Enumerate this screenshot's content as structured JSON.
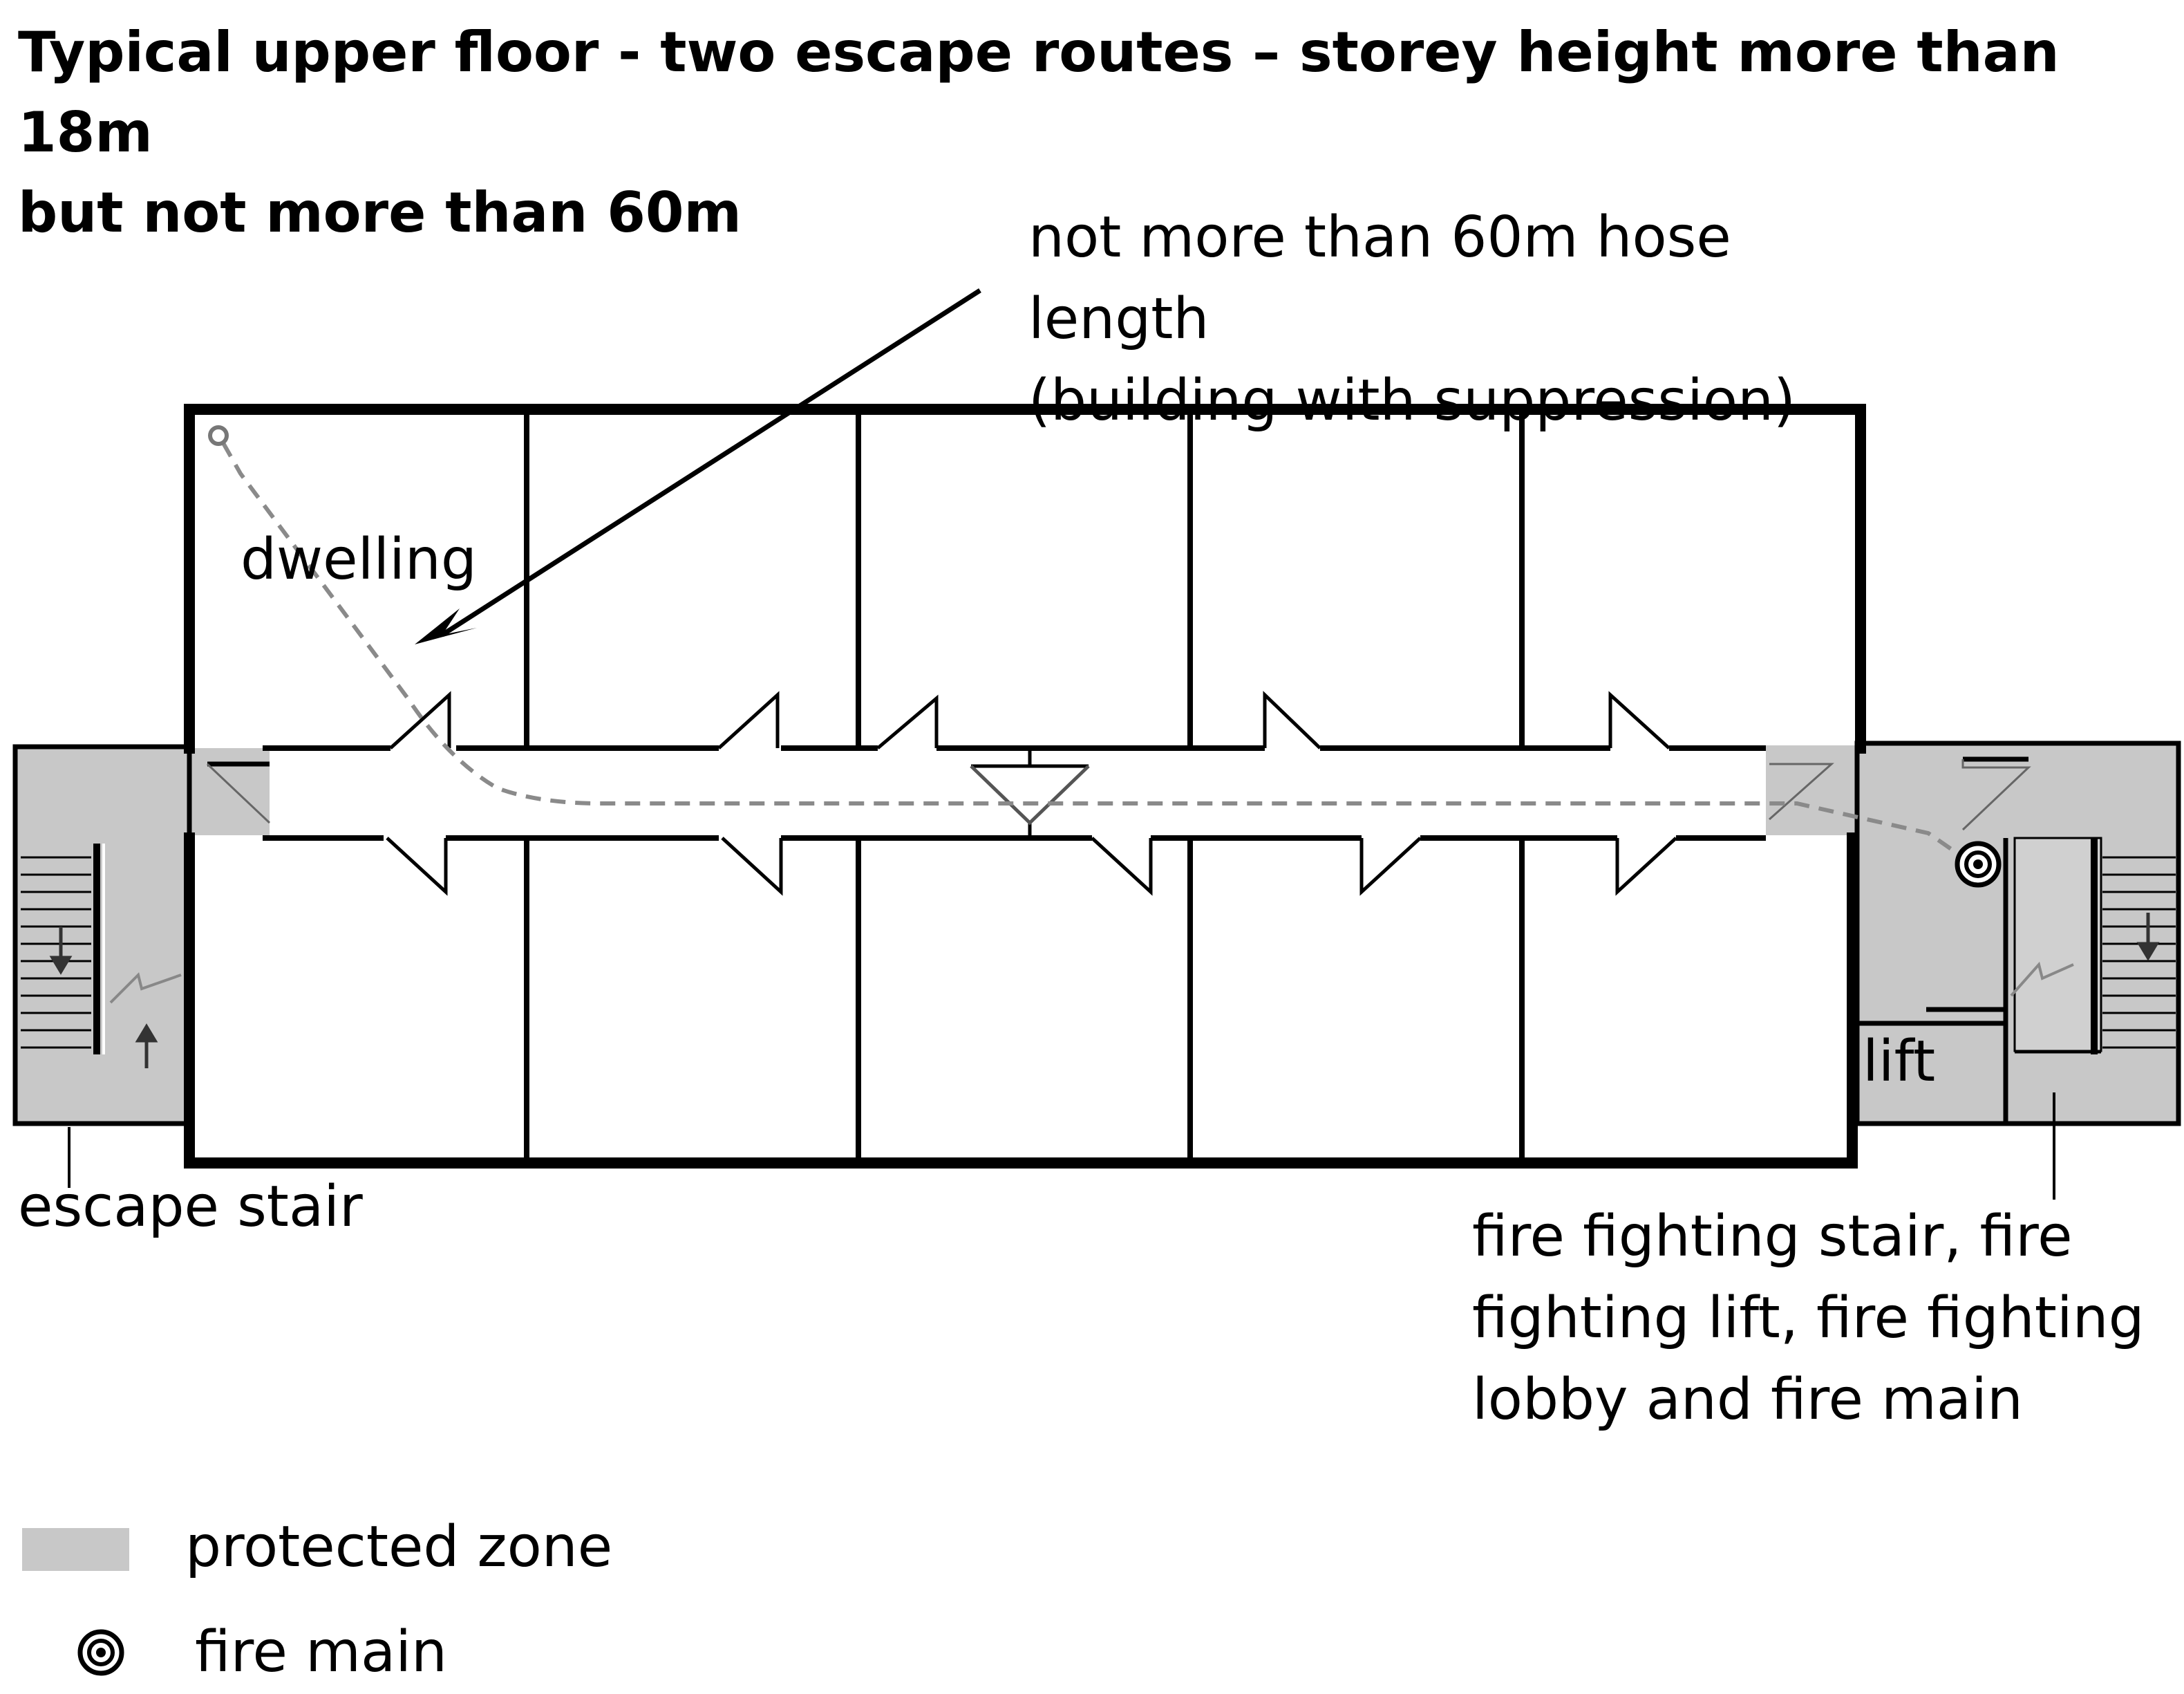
{
  "title": {
    "line1": "Typical upper floor - two escape routes – storey height more than 18m",
    "line2": "but not more than 60m"
  },
  "annotations": {
    "hose_length_line1": "not more than 60m hose length",
    "hose_length_line2": "(building with suppression)",
    "dwelling": "dwelling",
    "escape_stair": "escape stair",
    "lift": "lift",
    "firefighting_line1": "fire fighting stair, fire",
    "firefighting_line2": "fighting lift, fire fighting",
    "firefighting_line3": "lobby and fire main"
  },
  "legend": {
    "protected_zone": "protected zone",
    "fire_main": "fire main"
  },
  "colors": {
    "protected_zone": "#c8c8c8",
    "walls": "#000000",
    "hose_route": "#8a8a8a"
  }
}
